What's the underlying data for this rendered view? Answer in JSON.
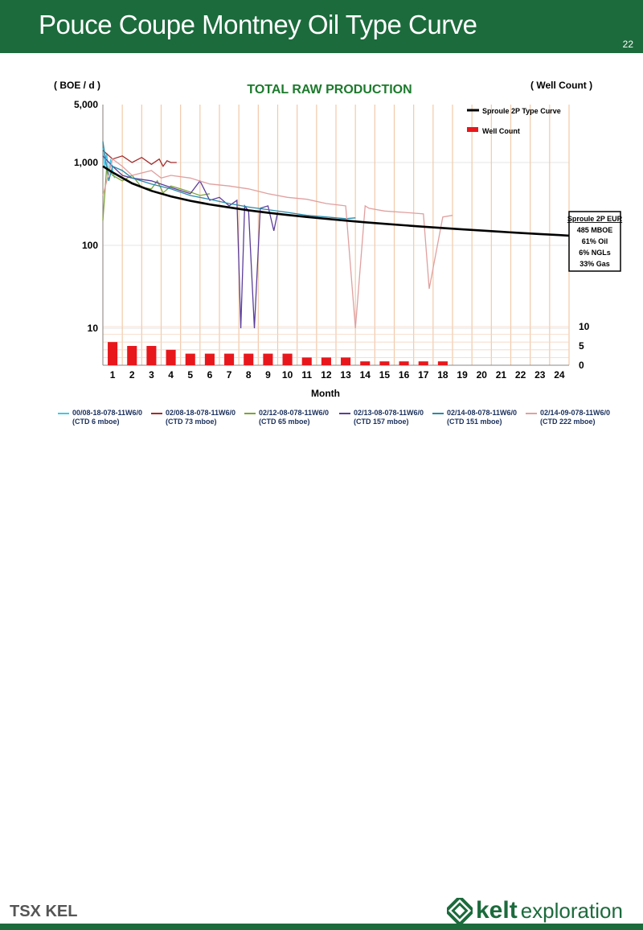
{
  "slide": {
    "title": "Pouce Coupe Montney Oil Type Curve",
    "page_number": "22"
  },
  "logos": {
    "left": "TSX KEL",
    "right_name": "kelt",
    "right_sub": "exploration"
  },
  "colors": {
    "brand_green": "#1c6b3c",
    "type_curve": "#000000",
    "well_count_bar": "#e8171b",
    "month_gridline": "#f2c9a8",
    "title_green": "#1c7a2c"
  },
  "chart_data": {
    "type": "line",
    "title": "TOTAL RAW PRODUCTION",
    "ylabel_left": "( BOE / d )",
    "ylabel_right": "( Well Count )",
    "xlabel": "Month",
    "y_scale": "log",
    "ylim": [
      10,
      5000
    ],
    "y_ticks": [
      "5,000",
      "1,000",
      "100",
      "10"
    ],
    "y_tick_values": [
      5000,
      1000,
      100,
      10
    ],
    "right_ticks": [
      "10",
      "5",
      "0"
    ],
    "right_tick_values": [
      10,
      5,
      0
    ],
    "categories": [
      "1",
      "2",
      "3",
      "4",
      "5",
      "6",
      "7",
      "8",
      "9",
      "10",
      "11",
      "12",
      "13",
      "14",
      "15",
      "16",
      "17",
      "18",
      "19",
      "20",
      "21",
      "22",
      "23",
      "24"
    ],
    "type_curve": {
      "name": "Sproule 2P Type Curve",
      "color": "#000000",
      "x": [
        0.5,
        1,
        2,
        3,
        4,
        5,
        6,
        7,
        8,
        9,
        10,
        11,
        12,
        13,
        14,
        15,
        16,
        17,
        18,
        19,
        20,
        21,
        22,
        23,
        24,
        24.5
      ],
      "y": [
        900,
        760,
        560,
        455,
        390,
        345,
        312,
        287,
        265,
        248,
        233,
        220,
        209,
        199,
        190,
        182,
        175,
        168,
        162,
        156,
        151,
        146,
        141,
        137,
        133,
        131
      ]
    },
    "well_count": {
      "name": "Well Count",
      "color": "#e8171b",
      "values": [
        6,
        5,
        5,
        4,
        3,
        3,
        3,
        3,
        3,
        3,
        2,
        2,
        2,
        1,
        1,
        1,
        1,
        1,
        0,
        0,
        0,
        0,
        0,
        0
      ]
    },
    "series": [
      {
        "name": "00/08-18-078-11W6/0",
        "note": "(CTD 6 mboe)",
        "color": "#3fc8e8",
        "x": [
          0.5,
          0.6,
          0.7,
          0.8,
          0.9,
          1.0,
          1.1
        ],
        "y": [
          1500,
          900,
          1300,
          700,
          1100,
          800,
          650
        ]
      },
      {
        "name": "02/08-18-078-11W6/0",
        "note": "(CTD 73 mboe)",
        "color": "#a52a2a",
        "x": [
          0.5,
          1,
          1.5,
          2,
          2.5,
          3,
          3.4,
          3.6,
          3.8,
          4,
          4.3
        ],
        "y": [
          1400,
          1100,
          1200,
          1000,
          1150,
          950,
          1100,
          900,
          1050,
          1000,
          1000
        ]
      },
      {
        "name": "02/12-08-078-11W6/0",
        "note": "(CTD 65 mboe)",
        "color": "#7da33a",
        "x": [
          0.5,
          0.7,
          1,
          1.5,
          2,
          2.5,
          3,
          3.3,
          3.6,
          4,
          4.5,
          5,
          5.5,
          6
        ],
        "y": [
          200,
          900,
          700,
          600,
          700,
          500,
          480,
          600,
          430,
          520,
          480,
          440,
          400,
          420
        ]
      },
      {
        "name": "02/13-08-078-11W6/0",
        "note": "(CTD 157 mboe)",
        "color": "#5b3d9a",
        "x": [
          0.5,
          1,
          1.5,
          2,
          3,
          4,
          5,
          5.5,
          6,
          6.5,
          7,
          7.4,
          7.6,
          7.8,
          8,
          8.3,
          8.6,
          9,
          9.3,
          9.5
        ],
        "y": [
          1200,
          900,
          700,
          650,
          600,
          500,
          420,
          600,
          350,
          380,
          300,
          350,
          10,
          300,
          260,
          10,
          280,
          300,
          150,
          250
        ]
      },
      {
        "name": "02/14-08-078-11W6/0",
        "note": "(CTD 151 mboe)",
        "color": "#2a8aa8",
        "x": [
          0.5,
          0.8,
          1,
          1.5,
          2,
          3,
          4,
          5,
          6,
          7,
          8,
          9,
          10,
          11,
          12,
          13,
          13.5
        ],
        "y": [
          1800,
          600,
          900,
          800,
          650,
          550,
          480,
          400,
          360,
          320,
          290,
          270,
          250,
          230,
          220,
          210,
          215
        ]
      },
      {
        "name": "02/14-09-078-11W6/0",
        "note": "(CTD 222 mboe)",
        "color": "#e0a0a0",
        "x": [
          0.5,
          1,
          1.5,
          2,
          3,
          3.5,
          4,
          5,
          6,
          7,
          8,
          9,
          10,
          11,
          12,
          13,
          13.5,
          14,
          14.2,
          15,
          16,
          17,
          17.3,
          18,
          18.5
        ],
        "y": [
          400,
          1100,
          900,
          700,
          800,
          650,
          700,
          650,
          550,
          520,
          480,
          420,
          380,
          360,
          320,
          300,
          10,
          300,
          280,
          260,
          250,
          240,
          30,
          220,
          230
        ]
      }
    ],
    "eur_box": {
      "title": "Sproule 2P EUR",
      "lines": [
        "485 MBOE",
        "61% Oil",
        "6% NGLs",
        "33% Gas"
      ]
    },
    "legend_top": [
      "Sproule 2P Type Curve",
      "Well Count"
    ]
  }
}
